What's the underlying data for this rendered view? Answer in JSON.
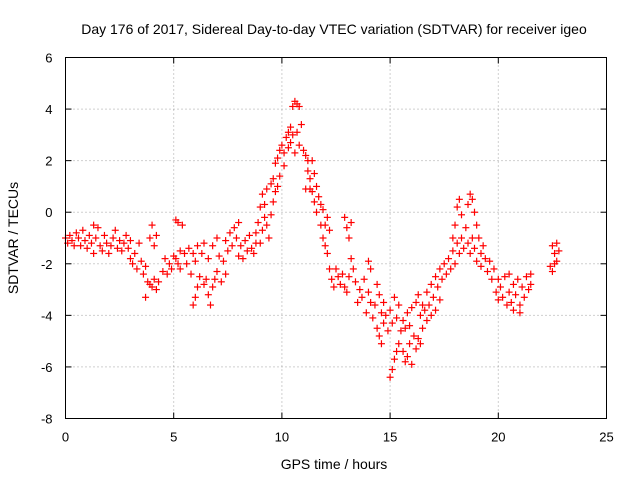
{
  "chart_data": {
    "type": "scatter",
    "title": "Day 176 of 2017, Sidereal Day-to-day VTEC variation (SDTVAR) for receiver igeo",
    "xlabel": "GPS time / hours",
    "ylabel": "SDTVAR / TECUs",
    "xlim": [
      0,
      25
    ],
    "ylim": [
      -8,
      6
    ],
    "xticks": [
      "0",
      "5",
      "10",
      "15",
      "20",
      "25"
    ],
    "yticks": [
      "-8",
      "-6",
      "-4",
      "-2",
      "0",
      "2",
      "4",
      "6"
    ],
    "grid": true,
    "marker": "+",
    "color": "#ff0000",
    "series": [
      {
        "name": "SDTVAR",
        "points": [
          [
            0.0,
            -1.0
          ],
          [
            0.1,
            -1.2
          ],
          [
            0.2,
            -0.9
          ],
          [
            0.3,
            -1.1
          ],
          [
            0.4,
            -1.3
          ],
          [
            0.5,
            -0.8
          ],
          [
            0.6,
            -1.0
          ],
          [
            0.7,
            -1.3
          ],
          [
            0.8,
            -0.7
          ],
          [
            0.9,
            -1.1
          ],
          [
            1.0,
            -1.4
          ],
          [
            1.1,
            -0.9
          ],
          [
            1.2,
            -1.2
          ],
          [
            1.3,
            -0.5
          ],
          [
            1.3,
            -1.6
          ],
          [
            1.4,
            -1.0
          ],
          [
            1.5,
            -0.6
          ],
          [
            1.6,
            -1.3
          ],
          [
            1.7,
            -1.5
          ],
          [
            1.8,
            -0.9
          ],
          [
            1.9,
            -1.2
          ],
          [
            2.0,
            -1.6
          ],
          [
            2.1,
            -1.3
          ],
          [
            2.2,
            -1.0
          ],
          [
            2.3,
            -0.7
          ],
          [
            2.4,
            -1.4
          ],
          [
            2.5,
            -1.1
          ],
          [
            2.6,
            -1.5
          ],
          [
            2.7,
            -1.2
          ],
          [
            2.8,
            -0.9
          ],
          [
            2.9,
            -1.4
          ],
          [
            3.0,
            -1.8
          ],
          [
            3.0,
            -1.1
          ],
          [
            3.1,
            -2.0
          ],
          [
            3.2,
            -1.6
          ],
          [
            3.3,
            -2.2
          ],
          [
            3.4,
            -1.2
          ],
          [
            3.5,
            -1.9
          ],
          [
            3.6,
            -2.4
          ],
          [
            3.7,
            -2.1
          ],
          [
            3.7,
            -3.3
          ],
          [
            3.8,
            -2.7
          ],
          [
            3.9,
            -1.0
          ],
          [
            3.9,
            -2.8
          ],
          [
            4.0,
            -0.5
          ],
          [
            4.0,
            -2.9
          ],
          [
            4.1,
            -1.3
          ],
          [
            4.1,
            -2.6
          ],
          [
            4.2,
            -0.9
          ],
          [
            4.2,
            -3.0
          ],
          [
            4.3,
            -2.7
          ],
          [
            4.5,
            -2.3
          ],
          [
            4.6,
            -1.8
          ],
          [
            4.7,
            -2.4
          ],
          [
            4.8,
            -2.0
          ],
          [
            4.9,
            -2.2
          ],
          [
            5.0,
            -1.7
          ],
          [
            5.1,
            -1.8
          ],
          [
            5.1,
            -0.3
          ],
          [
            5.2,
            -2.0
          ],
          [
            5.2,
            -0.4
          ],
          [
            5.3,
            -1.5
          ],
          [
            5.3,
            -2.2
          ],
          [
            5.4,
            -0.5
          ],
          [
            5.5,
            -1.6
          ],
          [
            5.6,
            -2.0
          ],
          [
            5.7,
            -1.4
          ],
          [
            5.8,
            -2.4
          ],
          [
            5.9,
            -1.6
          ],
          [
            5.9,
            -3.6
          ],
          [
            6.0,
            -1.9
          ],
          [
            6.0,
            -3.3
          ],
          [
            6.1,
            -1.3
          ],
          [
            6.1,
            -2.9
          ],
          [
            6.2,
            -2.5
          ],
          [
            6.3,
            -1.6
          ],
          [
            6.4,
            -2.8
          ],
          [
            6.4,
            -1.2
          ],
          [
            6.5,
            -2.6
          ],
          [
            6.6,
            -3.2
          ],
          [
            6.6,
            -1.8
          ],
          [
            6.7,
            -3.6
          ],
          [
            6.8,
            -2.9
          ],
          [
            6.8,
            -1.3
          ],
          [
            6.9,
            -2.6
          ],
          [
            7.0,
            -2.3
          ],
          [
            7.0,
            -1.0
          ],
          [
            7.1,
            -1.7
          ],
          [
            7.2,
            -2.7
          ],
          [
            7.3,
            -1.9
          ],
          [
            7.4,
            -2.4
          ],
          [
            7.4,
            -1.1
          ],
          [
            7.5,
            -1.5
          ],
          [
            7.6,
            -0.8
          ],
          [
            7.7,
            -1.3
          ],
          [
            7.8,
            -0.6
          ],
          [
            7.9,
            -1.0
          ],
          [
            8.0,
            -1.7
          ],
          [
            8.0,
            -0.4
          ],
          [
            8.1,
            -1.3
          ],
          [
            8.2,
            -1.8
          ],
          [
            8.3,
            -1.1
          ],
          [
            8.4,
            -1.5
          ],
          [
            8.5,
            -0.9
          ],
          [
            8.6,
            -1.4
          ],
          [
            8.7,
            -1.6
          ],
          [
            8.8,
            -1.2
          ],
          [
            8.8,
            -0.8
          ],
          [
            8.9,
            -0.4
          ],
          [
            9.0,
            -1.2
          ],
          [
            9.0,
            0.2
          ],
          [
            9.1,
            -0.7
          ],
          [
            9.1,
            0.7
          ],
          [
            9.2,
            -0.2
          ],
          [
            9.2,
            0.3
          ],
          [
            9.3,
            -0.5
          ],
          [
            9.3,
            0.9
          ],
          [
            9.4,
            -1.0
          ],
          [
            9.5,
            1.1
          ],
          [
            9.5,
            -0.1
          ],
          [
            9.6,
            0.4
          ],
          [
            9.6,
            1.3
          ],
          [
            9.7,
            1.9
          ],
          [
            9.7,
            0.8
          ],
          [
            9.8,
            2.1
          ],
          [
            9.8,
            1.0
          ],
          [
            9.9,
            2.4
          ],
          [
            9.9,
            1.4
          ],
          [
            10.0,
            2.6
          ],
          [
            10.1,
            1.8
          ],
          [
            10.1,
            2.3
          ],
          [
            10.2,
            2.9
          ],
          [
            10.3,
            3.1
          ],
          [
            10.3,
            2.5
          ],
          [
            10.4,
            3.3
          ],
          [
            10.4,
            2.7
          ],
          [
            10.5,
            4.1
          ],
          [
            10.5,
            3.0
          ],
          [
            10.6,
            4.3
          ],
          [
            10.6,
            2.3
          ],
          [
            10.7,
            4.2
          ],
          [
            10.7,
            3.1
          ],
          [
            10.8,
            4.1
          ],
          [
            10.8,
            2.6
          ],
          [
            10.9,
            3.4
          ],
          [
            11.0,
            2.4
          ],
          [
            11.1,
            2.2
          ],
          [
            11.1,
            0.9
          ],
          [
            11.2,
            2.0
          ],
          [
            11.2,
            1.6
          ],
          [
            11.3,
            1.3
          ],
          [
            11.3,
            0.9
          ],
          [
            11.4,
            2.0
          ],
          [
            11.4,
            0.8
          ],
          [
            11.5,
            1.5
          ],
          [
            11.5,
            0.4
          ],
          [
            11.6,
            1.0
          ],
          [
            11.6,
            0.0
          ],
          [
            11.7,
            0.6
          ],
          [
            11.8,
            -0.5
          ],
          [
            11.8,
            0.3
          ],
          [
            11.9,
            -1.0
          ],
          [
            11.9,
            0.1
          ],
          [
            12.0,
            -0.5
          ],
          [
            12.0,
            -1.3
          ],
          [
            12.1,
            -0.2
          ],
          [
            12.1,
            -1.6
          ],
          [
            12.2,
            -0.7
          ],
          [
            12.2,
            -2.2
          ],
          [
            12.3,
            -2.6
          ],
          [
            12.4,
            -2.9
          ],
          [
            12.5,
            -2.2
          ],
          [
            12.6,
            -2.5
          ],
          [
            12.7,
            -2.8
          ],
          [
            12.8,
            -2.4
          ],
          [
            12.9,
            -0.2
          ],
          [
            12.9,
            -2.9
          ],
          [
            13.0,
            -0.6
          ],
          [
            13.0,
            -3.1
          ],
          [
            13.1,
            -1.0
          ],
          [
            13.1,
            -2.5
          ],
          [
            13.2,
            -0.4
          ],
          [
            13.2,
            -1.8
          ],
          [
            13.3,
            -2.2
          ],
          [
            13.4,
            -2.7
          ],
          [
            13.5,
            -3.5
          ],
          [
            13.6,
            -3.0
          ],
          [
            13.7,
            -3.3
          ],
          [
            13.8,
            -2.6
          ],
          [
            13.9,
            -3.9
          ],
          [
            14.0,
            -3.1
          ],
          [
            14.0,
            -1.9
          ],
          [
            14.1,
            -3.5
          ],
          [
            14.1,
            -2.2
          ],
          [
            14.2,
            -4.1
          ],
          [
            14.3,
            -3.6
          ],
          [
            14.4,
            -2.8
          ],
          [
            14.4,
            -4.5
          ],
          [
            14.5,
            -3.2
          ],
          [
            14.5,
            -4.8
          ],
          [
            14.6,
            -3.9
          ],
          [
            14.6,
            -5.1
          ],
          [
            14.7,
            -3.5
          ],
          [
            14.7,
            -4.3
          ],
          [
            14.8,
            -4.0
          ],
          [
            14.9,
            -4.6
          ],
          [
            15.0,
            -6.4
          ],
          [
            15.0,
            -3.8
          ],
          [
            15.1,
            -6.1
          ],
          [
            15.1,
            -4.3
          ],
          [
            15.2,
            -5.7
          ],
          [
            15.2,
            -3.3
          ],
          [
            15.3,
            -5.4
          ],
          [
            15.3,
            -4.1
          ],
          [
            15.4,
            -5.1
          ],
          [
            15.4,
            -3.6
          ],
          [
            15.5,
            -4.6
          ],
          [
            15.6,
            -5.4
          ],
          [
            15.6,
            -4.2
          ],
          [
            15.7,
            -5.8
          ],
          [
            15.7,
            -4.5
          ],
          [
            15.8,
            -5.6
          ],
          [
            15.8,
            -3.9
          ],
          [
            15.9,
            -5.1
          ],
          [
            15.9,
            -4.4
          ],
          [
            16.0,
            -5.9
          ],
          [
            16.0,
            -3.7
          ],
          [
            16.1,
            -4.8
          ],
          [
            16.2,
            -5.3
          ],
          [
            16.2,
            -3.5
          ],
          [
            16.3,
            -4.9
          ],
          [
            16.3,
            -3.2
          ],
          [
            16.4,
            -5.1
          ],
          [
            16.4,
            -4.0
          ],
          [
            16.5,
            -3.6
          ],
          [
            16.5,
            -4.5
          ],
          [
            16.6,
            -3.8
          ],
          [
            16.7,
            -3.1
          ],
          [
            16.7,
            -4.2
          ],
          [
            16.8,
            -3.6
          ],
          [
            16.9,
            -2.8
          ],
          [
            16.9,
            -4.0
          ],
          [
            17.0,
            -3.3
          ],
          [
            17.1,
            -2.5
          ],
          [
            17.1,
            -3.8
          ],
          [
            17.2,
            -2.9
          ],
          [
            17.3,
            -2.2
          ],
          [
            17.3,
            -3.4
          ],
          [
            17.4,
            -2.6
          ],
          [
            17.5,
            -2.0
          ],
          [
            17.6,
            -2.4
          ],
          [
            17.7,
            -1.8
          ],
          [
            17.8,
            -2.2
          ],
          [
            17.9,
            -1.5
          ],
          [
            17.9,
            -1.0
          ],
          [
            18.0,
            -0.5
          ],
          [
            18.0,
            -2.0
          ],
          [
            18.1,
            0.2
          ],
          [
            18.1,
            -1.2
          ],
          [
            18.2,
            0.5
          ],
          [
            18.2,
            -1.6
          ],
          [
            18.3,
            -0.1
          ],
          [
            18.3,
            -1.0
          ],
          [
            18.4,
            -1.4
          ],
          [
            18.5,
            -0.6
          ],
          [
            18.6,
            -1.2
          ],
          [
            18.6,
            0.3
          ],
          [
            18.7,
            0.7
          ],
          [
            18.7,
            -1.6
          ],
          [
            18.8,
            0.5
          ],
          [
            18.8,
            -1.0
          ],
          [
            18.9,
            0.0
          ],
          [
            18.9,
            -1.4
          ],
          [
            19.0,
            -0.5
          ],
          [
            19.0,
            -1.9
          ],
          [
            19.1,
            -1.0
          ],
          [
            19.2,
            -1.6
          ],
          [
            19.2,
            -2.1
          ],
          [
            19.3,
            -1.3
          ],
          [
            19.4,
            -1.8
          ],
          [
            19.5,
            -2.3
          ],
          [
            19.6,
            -1.9
          ],
          [
            19.7,
            -2.6
          ],
          [
            19.8,
            -2.2
          ],
          [
            19.9,
            -3.1
          ],
          [
            20.0,
            -2.6
          ],
          [
            20.0,
            -3.4
          ],
          [
            20.1,
            -2.9
          ],
          [
            20.2,
            -3.3
          ],
          [
            20.3,
            -2.5
          ],
          [
            20.4,
            -3.6
          ],
          [
            20.5,
            -3.1
          ],
          [
            20.5,
            -2.4
          ],
          [
            20.6,
            -3.5
          ],
          [
            20.7,
            -2.8
          ],
          [
            20.7,
            -3.8
          ],
          [
            20.8,
            -3.2
          ],
          [
            20.9,
            -2.6
          ],
          [
            21.0,
            -3.6
          ],
          [
            21.0,
            -3.9
          ],
          [
            21.1,
            -2.9
          ],
          [
            21.2,
            -3.3
          ],
          [
            21.3,
            -2.5
          ],
          [
            21.4,
            -3.0
          ],
          [
            21.5,
            -2.4
          ],
          [
            21.5,
            -2.8
          ],
          [
            22.4,
            -2.1
          ],
          [
            22.5,
            -1.3
          ],
          [
            22.5,
            -2.3
          ],
          [
            22.6,
            -1.6
          ],
          [
            22.6,
            -2.0
          ],
          [
            22.7,
            -1.2
          ],
          [
            22.7,
            -1.9
          ],
          [
            22.8,
            -1.5
          ]
        ]
      }
    ]
  }
}
